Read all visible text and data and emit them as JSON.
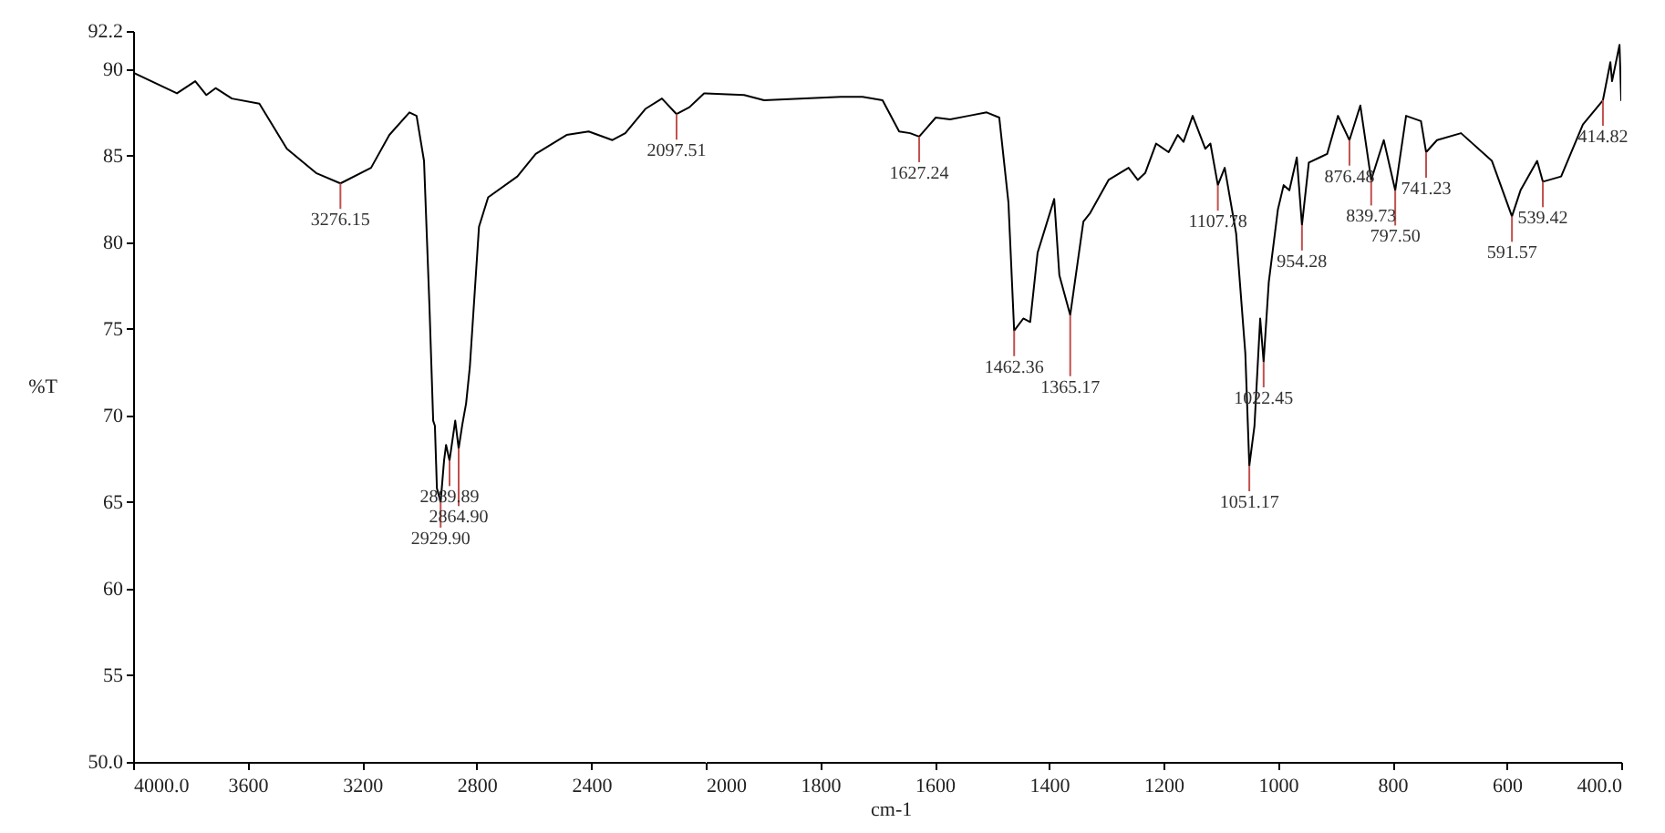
{
  "chart_data": [
    {
      "type": "line",
      "ylabel": "%T",
      "x": [
        4000,
        3847,
        3783,
        3744,
        3712,
        3655,
        3559,
        3463,
        3361,
        3276,
        3169,
        3105,
        3035,
        3010,
        2984,
        2965,
        2952,
        2946,
        2939,
        2926,
        2914,
        2907,
        2895,
        2875,
        2863,
        2850,
        2837,
        2824,
        2792,
        2760,
        2658,
        2594,
        2486,
        2409,
        2326,
        2281,
        2211,
        2153,
        2102,
        2057,
        2006,
        2000
      ],
      "series": [
        {
          "color": "#000000",
          "values": [
            89.8,
            88.6,
            89.3,
            88.5,
            88.9,
            88.3,
            88.0,
            85.4,
            84.0,
            83.4,
            84.3,
            86.2,
            87.5,
            87.3,
            84.7,
            76.3,
            69.7,
            69.4,
            65.8,
            65.0,
            67.4,
            68.3,
            67.4,
            69.7,
            68.1,
            69.5,
            70.7,
            72.8,
            80.9,
            82.6,
            83.8,
            85.1,
            86.2,
            86.4,
            85.9,
            86.3,
            87.7,
            88.3,
            87.4,
            87.8,
            88.6,
            88.6
          ]
        }
      ],
      "xlim": [
        4000,
        2000
      ],
      "xticks": [
        {
          "value": 4000,
          "label": "4000.0"
        },
        3600,
        3200,
        2800,
        2400
      ],
      "ylim": [
        50,
        92.2
      ],
      "yticks": [
        {
          "value": 50,
          "label": "50.0"
        },
        55,
        60,
        65,
        70,
        75,
        80,
        85,
        90,
        92.2
      ],
      "grid": false,
      "marker": "none",
      "line_style": "solid",
      "annotations": [
        {
          "text": "3276.15",
          "x": 3276,
          "y": 83.4
        },
        {
          "text": "2929.90",
          "x": 2926,
          "y": 65.0
        },
        {
          "text": "2889.89",
          "x": 2895,
          "y": 67.4
        },
        {
          "text": "2864.90",
          "x": 2863,
          "y": 68.1
        },
        {
          "text": "2097.51",
          "x": 2102,
          "y": 87.4
        }
      ]
    },
    {
      "type": "line",
      "xlabel": "cm-1",
      "x": [
        2000,
        1933,
        1898,
        1764,
        1726,
        1691,
        1662,
        1643,
        1627,
        1598,
        1573,
        1541,
        1509,
        1487,
        1471,
        1461,
        1445,
        1433,
        1420,
        1391,
        1382,
        1363,
        1340,
        1328,
        1296,
        1261,
        1245,
        1232,
        1213,
        1191,
        1175,
        1165,
        1149,
        1127,
        1118,
        1105,
        1093,
        1073,
        1057,
        1050,
        1041,
        1031,
        1025,
        1016,
        1000,
        990,
        980,
        967,
        958,
        946,
        927,
        914,
        895,
        875,
        856,
        837,
        815,
        795,
        776,
        750,
        741,
        722,
        680,
        626,
        591,
        576,
        547,
        537,
        505,
        467,
        432,
        419,
        416,
        403,
        400
      ],
      "series": [
        {
          "color": "#000000",
          "values": [
            88.6,
            88.5,
            88.2,
            88.4,
            88.4,
            88.2,
            86.4,
            86.3,
            86.1,
            87.2,
            87.1,
            87.3,
            87.5,
            87.2,
            82.3,
            74.9,
            75.6,
            75.4,
            79.4,
            82.5,
            78.1,
            75.8,
            81.2,
            81.7,
            83.6,
            84.3,
            83.6,
            84.0,
            85.7,
            85.2,
            86.2,
            85.8,
            87.3,
            85.4,
            85.7,
            83.3,
            84.3,
            80.5,
            73.6,
            67.1,
            69.4,
            75.6,
            73.1,
            77.7,
            81.9,
            83.3,
            83.0,
            84.9,
            81.0,
            84.6,
            84.9,
            85.1,
            87.3,
            85.9,
            87.9,
            83.6,
            85.9,
            83.0,
            87.3,
            87.0,
            85.2,
            85.9,
            86.3,
            84.7,
            81.5,
            83.0,
            84.7,
            83.5,
            83.8,
            86.8,
            88.2,
            90.4,
            89.3,
            91.4,
            88.2
          ]
        }
      ],
      "xlim": [
        2000,
        400
      ],
      "xticks": [
        2000,
        1800,
        1600,
        1400,
        1200,
        1000,
        800,
        600,
        {
          "value": 400,
          "label": "400.0"
        }
      ],
      "ylim": [
        50,
        92.2
      ],
      "tick_labels": "x",
      "grid": false,
      "marker": "none",
      "line_style": "solid",
      "annotations": [
        {
          "text": "1627.24",
          "x": 1627,
          "y": 86.1
        },
        {
          "text": "1462.36",
          "x": 1461,
          "y": 74.9
        },
        {
          "text": "1365.17",
          "x": 1363,
          "y": 75.8
        },
        {
          "text": "1107.78",
          "x": 1105,
          "y": 83.3
        },
        {
          "text": "1051.17",
          "x": 1050,
          "y": 67.1
        },
        {
          "text": "1022.45",
          "x": 1025,
          "y": 73.1
        },
        {
          "text": "954.28",
          "x": 958,
          "y": 81.0
        },
        {
          "text": "876.48",
          "x": 875,
          "y": 85.9
        },
        {
          "text": "839.73",
          "x": 837,
          "y": 83.6
        },
        {
          "text": "797.50",
          "x": 795,
          "y": 83.0
        },
        {
          "text": "741.23",
          "x": 741,
          "y": 85.2
        },
        {
          "text": "591.57",
          "x": 591,
          "y": 81.5
        },
        {
          "text": "539.42",
          "x": 537,
          "y": 83.5
        },
        {
          "text": "414.82",
          "x": 432,
          "y": 88.2
        }
      ]
    }
  ]
}
